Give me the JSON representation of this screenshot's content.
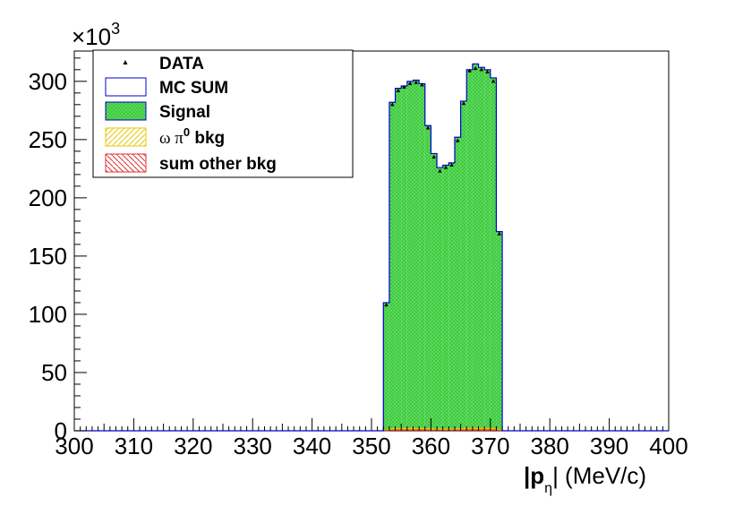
{
  "chart_data": {
    "type": "bar",
    "xlabel_main": "|p",
    "xlabel_sub": "η",
    "xlabel_unit": "| (MeV/c)",
    "ylabel": "",
    "y_multiplier_base": "×10",
    "y_multiplier_exp": "3",
    "xlim": [
      300,
      400
    ],
    "ylim": [
      0,
      326
    ],
    "grid": false,
    "legend_placement": "top-left",
    "x_ticks": [
      "300",
      "310",
      "320",
      "330",
      "340",
      "350",
      "360",
      "370",
      "380",
      "390",
      "400"
    ],
    "y_ticks": [
      "0",
      "50",
      "100",
      "150",
      "200",
      "250",
      "300"
    ],
    "bin_width": 1,
    "bin_edges_start": 352,
    "mc_sum": [
      110,
      282,
      294,
      296,
      300,
      301,
      298,
      262,
      238,
      226,
      228,
      230,
      252,
      283,
      310,
      315,
      312,
      310,
      303,
      171
    ],
    "data_points": [
      108,
      280,
      292,
      295,
      298,
      299,
      297,
      260,
      235,
      223,
      226,
      228,
      249,
      281,
      309,
      311,
      310,
      308,
      300,
      169
    ],
    "omega_pi0_bkg": [
      0.5,
      1.2,
      1.4,
      1.5,
      1.5,
      1.5,
      1.5,
      1.3,
      1.2,
      1.1,
      1.1,
      1.1,
      1.2,
      1.4,
      1.5,
      1.5,
      1.5,
      1.5,
      1.5,
      0.8
    ],
    "other_bkg": [
      0.6,
      1.0,
      1.1,
      1.1,
      1.1,
      1.1,
      1.1,
      1.0,
      0.9,
      0.9,
      0.9,
      0.9,
      1.0,
      1.1,
      1.2,
      1.2,
      1.2,
      1.2,
      1.1,
      0.7
    ],
    "colors": {
      "mc_sum": "#0000cc",
      "signal_fill": "#55dd55",
      "signal_dots": "#2e9e2e",
      "omega_bkg": "#e8c400",
      "other_bkg": "#e03030",
      "data": "#000000"
    },
    "legend": [
      {
        "label": "DATA",
        "kind": "data"
      },
      {
        "label": "MC SUM",
        "kind": "mc"
      },
      {
        "label": "Signal",
        "kind": "signal"
      },
      {
        "label": "ω   π",
        "sup": "0",
        "suffix": " bkg",
        "kind": "omega"
      },
      {
        "label": "sum other bkg",
        "kind": "other"
      }
    ]
  }
}
